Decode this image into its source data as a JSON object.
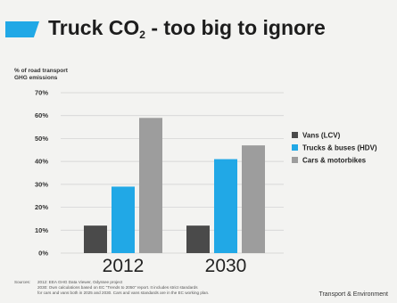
{
  "title": {
    "main": "Truck CO",
    "sub": "2",
    "rest": " - too big to ignore"
  },
  "chart_data": {
    "type": "bar",
    "ylabel": [
      "% of road transport",
      "GHG emissions"
    ],
    "xlabel": "",
    "categories": [
      "2012",
      "2030"
    ],
    "series": [
      {
        "name": "Vans (LCV)",
        "color": "#4a4a4a",
        "values": [
          12,
          12
        ]
      },
      {
        "name": "Trucks & buses (HDV)",
        "color": "#21a8e6",
        "values": [
          29,
          41
        ]
      },
      {
        "name": "Cars & motorbikes",
        "color": "#9d9d9d",
        "values": [
          59,
          47
        ]
      }
    ],
    "ylim": [
      0,
      70
    ],
    "yticks": [
      0,
      10,
      20,
      30,
      40,
      50,
      60,
      70
    ],
    "ytick_labels": [
      "0%",
      "10%",
      "20%",
      "30%",
      "40%",
      "50%",
      "60%",
      "70%"
    ],
    "grid": true,
    "legend_position": "right"
  },
  "sources": {
    "label": "Sources:",
    "lines": [
      "2012: EEA GHG Data Viewer, Odyssee project",
      "2030: Own calculations based on EC \"Trends to 2050\" report. It includes strict standards",
      "for cars and vans both in 2025 and 2030. Cars and vans standards are in the EC working plan."
    ]
  },
  "brand": "Transport & Environment"
}
